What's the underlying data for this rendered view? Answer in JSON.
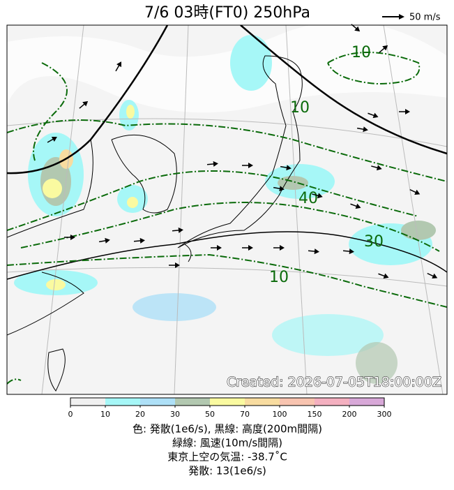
{
  "header": {
    "title": "7/6  03時(FT0)     250hPa",
    "wind_scale_label": "50 m/s"
  },
  "map": {
    "contour_labels": [
      "10",
      "10",
      "40",
      "30",
      "10"
    ],
    "created": "Created: 2026-07-05T18:00:00Z"
  },
  "colorbar": {
    "ticks": [
      0,
      10,
      20,
      30,
      50,
      70,
      100,
      150,
      200,
      300
    ],
    "colors": [
      "#f0f0f0",
      "#a6f7f7",
      "#aee0f7",
      "#b2c8b0",
      "#fafaa0",
      "#f8dca0",
      "#f8c4b0",
      "#f4b0c0",
      "#d8a8d8"
    ]
  },
  "caption": [
    "色: 発散(1e6/s),  黒線: 高度(200m間隔)",
    "緑線: 風速(10m/s間隔)",
    "東京上空の気温: -38.7˚C",
    "発散: 13(1e6/s)"
  ]
}
